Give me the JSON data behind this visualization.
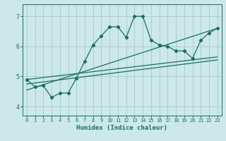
{
  "xlabel": "Humidex (Indice chaleur)",
  "bg_color": "#cce8e8",
  "grid_color": "#aacfcf",
  "line_color": "#1a6e65",
  "xlim": [
    -0.5,
    23.5
  ],
  "ylim": [
    3.7,
    7.4
  ],
  "xticks": [
    0,
    1,
    2,
    3,
    4,
    5,
    6,
    7,
    8,
    9,
    10,
    11,
    12,
    13,
    14,
    15,
    16,
    17,
    18,
    19,
    20,
    21,
    22,
    23
  ],
  "yticks": [
    4,
    5,
    6,
    7
  ],
  "series1_x": [
    0,
    1,
    2,
    3,
    4,
    5,
    6,
    7,
    8,
    9,
    10,
    11,
    12,
    13,
    14,
    15,
    16,
    17,
    18,
    19,
    20,
    21,
    22,
    23
  ],
  "series1_y": [
    4.9,
    4.65,
    4.7,
    4.3,
    4.45,
    4.45,
    4.95,
    5.5,
    6.05,
    6.35,
    6.65,
    6.65,
    6.3,
    7.0,
    7.0,
    6.2,
    6.05,
    6.0,
    5.85,
    5.85,
    5.6,
    6.2,
    6.45,
    6.6
  ],
  "trend1_x": [
    0,
    23
  ],
  "trend1_y": [
    4.9,
    5.65
  ],
  "trend2_x": [
    0,
    23
  ],
  "trend2_y": [
    4.75,
    5.55
  ],
  "trend3_x": [
    0,
    23
  ],
  "trend3_y": [
    4.55,
    6.6
  ]
}
